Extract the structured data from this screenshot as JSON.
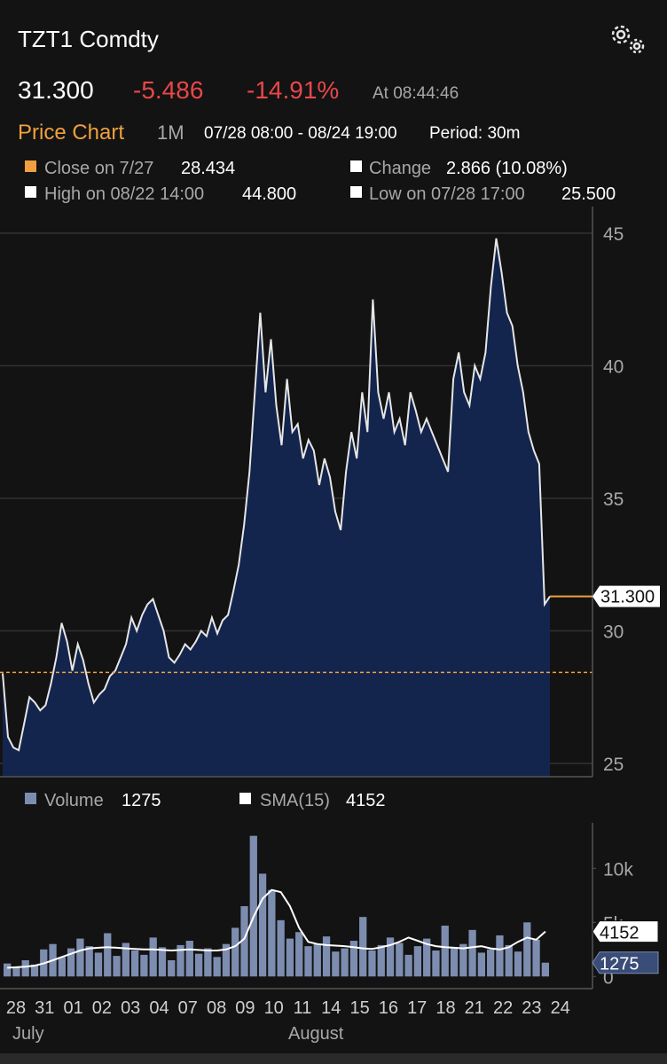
{
  "header": {
    "title": "TZT1 Comdty",
    "price": "31.300",
    "change": "-5.486",
    "change_pct": "-14.91%",
    "time": "At 08:44:46"
  },
  "toolbar": {
    "title": "Price Chart",
    "range": "1M",
    "span": "07/28 08:00 - 08/24 19:00",
    "period": "Period: 30m"
  },
  "info": {
    "close_label": "Close on 7/27",
    "change_label": "Change",
    "change_value": "2.866 (10.08%)",
    "high_label": "High on 08/22 14:00",
    "high_value": "44.800",
    "low_label": "Low on 07/28 17:00",
    "low_value": "25.500"
  },
  "x_axis": {
    "ticks": [
      "28",
      "31",
      "01",
      "02",
      "03",
      "04",
      "07",
      "08",
      "09",
      "10",
      "11",
      "14",
      "15",
      "16",
      "17",
      "18",
      "21",
      "22",
      "23",
      "24"
    ],
    "months": [
      "July",
      "August"
    ]
  },
  "chart_data": [
    {
      "type": "area",
      "color": "#13244d",
      "line_color": "#e6e6e6",
      "values": [
        28.4,
        26,
        25.6,
        25.5,
        26.5,
        27.5,
        27.3,
        27,
        27.2,
        28,
        29,
        30.3,
        29.6,
        28.5,
        29.5,
        28.9,
        28,
        27.3,
        27.6,
        27.8,
        28.3,
        28.5,
        29,
        29.5,
        30.5,
        30,
        30.6,
        31,
        31.2,
        30.6,
        30,
        29,
        28.8,
        29.1,
        29.5,
        29.3,
        29.6,
        30,
        29.8,
        30.5,
        29.9,
        30.4,
        30.6,
        31.5,
        32.5,
        34,
        36,
        39,
        42,
        39,
        41,
        38.5,
        37,
        39.5,
        37.5,
        37.8,
        36.5,
        37.2,
        36.8,
        35.5,
        36.5,
        35.8,
        34.5,
        33.8,
        36,
        37.5,
        36.5,
        39,
        37.5,
        42.5,
        39,
        38,
        39,
        37.5,
        38,
        37,
        39,
        38.3,
        37.5,
        38,
        37.5,
        37,
        36.5,
        36,
        39.5,
        40.5,
        39,
        38.5,
        40,
        39.5,
        40.5,
        43,
        44.8,
        43.5,
        42,
        41.5,
        40,
        39,
        37.5,
        36.8,
        36.3,
        31,
        31.3
      ],
      "ylim": [
        24.5,
        45.5
      ],
      "yticks": [
        25,
        30,
        35,
        40,
        45
      ],
      "grid": true,
      "reference": 28.434,
      "reference_color": "#f0a040"
    },
    {
      "type": "bar",
      "series": [
        {
          "name": "Volume",
          "color": "#7d8db0",
          "values": [
            1200,
            900,
            1500,
            1100,
            2500,
            3000,
            1800,
            2600,
            3500,
            2800,
            2200,
            4000,
            1900,
            3100,
            2400,
            2000,
            3600,
            2700,
            1500,
            2900,
            3300,
            2100,
            2600,
            1800,
            3000,
            4500,
            6500,
            13000,
            9500,
            8000,
            5200,
            3500,
            4100,
            2800,
            3000,
            3700,
            2300,
            2600,
            3300,
            5500,
            2400,
            2900,
            3600,
            3100,
            2000,
            2800,
            3500,
            2400,
            4700,
            2600,
            3000,
            4300,
            2200,
            2500,
            3800,
            2900,
            2300,
            5000,
            3400,
            1275
          ]
        },
        {
          "name": "SMA(15)",
          "color": "#ffffff",
          "values": [
            800,
            850,
            900,
            1000,
            1200,
            1500,
            1800,
            2100,
            2400,
            2600,
            2650,
            2700,
            2650,
            2600,
            2550,
            2500,
            2500,
            2450,
            2400,
            2450,
            2500,
            2450,
            2400,
            2400,
            2500,
            2800,
            3500,
            5500,
            7200,
            8000,
            7800,
            6500,
            4500,
            3200,
            3000,
            2900,
            2850,
            2800,
            2700,
            2600,
            2550,
            2700,
            2900,
            3200,
            3600,
            3300,
            3000,
            2800,
            2700,
            2650,
            2600,
            2700,
            2800,
            2600,
            2500,
            2700,
            3200,
            3600,
            3400,
            4152
          ]
        }
      ],
      "ylim": [
        -550,
        14200
      ],
      "yticks": [
        0,
        {
          "value": 5000,
          "label": "5k"
        },
        {
          "value": 10000,
          "label": "10k"
        }
      ]
    }
  ]
}
